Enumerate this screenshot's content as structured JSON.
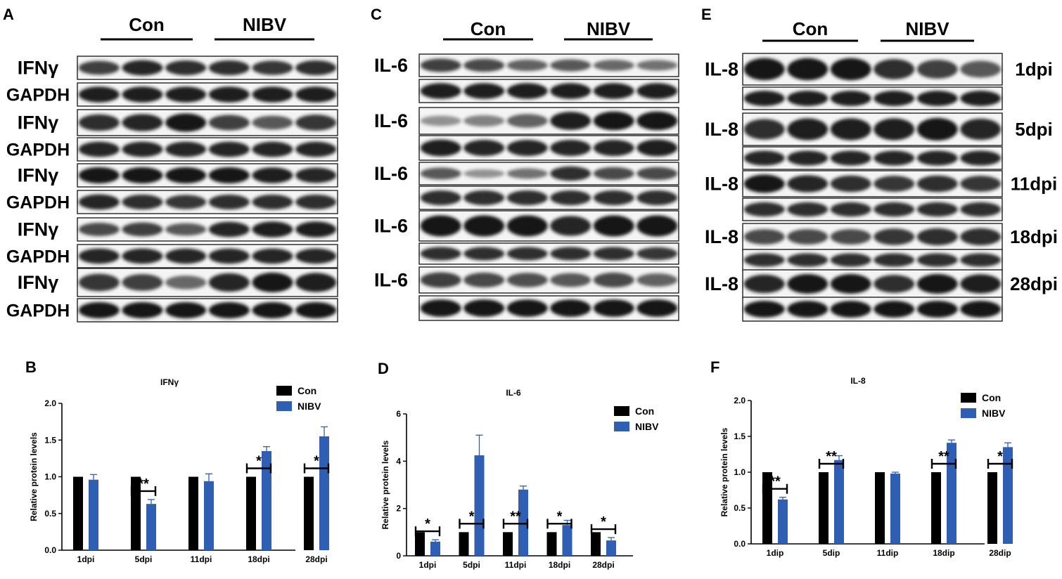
{
  "blot_panels": [
    {
      "letter": "A",
      "group_labels": [
        "Con",
        "NIBV"
      ],
      "rows": [
        "IFNγ",
        "GAPDH",
        "IFNγ",
        "GAPDH",
        "IFNγ",
        "GAPDH",
        "IFNγ",
        "GAPDH",
        "IFNγ",
        "GAPDH"
      ],
      "timepoints": []
    },
    {
      "letter": "C",
      "group_labels": [
        "Con",
        "NIBV"
      ],
      "rows": [
        "IL-6",
        "",
        "IL-6",
        "",
        "IL-6",
        "",
        "IL-6",
        "",
        "IL-6",
        ""
      ],
      "timepoints": []
    },
    {
      "letter": "E",
      "group_labels": [
        "Con",
        "NIBV"
      ],
      "rows": [
        "IL-8",
        "",
        "IL-8",
        "",
        "IL-8",
        "",
        "IL-8",
        "",
        "IL-8",
        ""
      ],
      "timepoints": [
        "1dpi",
        "5dpi",
        "11dpi",
        "18dpi",
        "28dpi"
      ]
    }
  ],
  "colors": {
    "con": "#000000",
    "nibv": "#2e5fb3",
    "band": "#151515"
  },
  "chart_data": [
    {
      "letter": "B",
      "type": "bar",
      "title": "IFNγ",
      "ylabel": "Relative protein levels",
      "categories": [
        "1dpi",
        "5dpi",
        "11dpi",
        "18dpi",
        "28dpi"
      ],
      "series": [
        {
          "name": "Con",
          "values": [
            1.0,
            1.0,
            1.0,
            1.0,
            1.0
          ],
          "errors": [
            0,
            0,
            0,
            0,
            0
          ]
        },
        {
          "name": "NIBV",
          "values": [
            0.96,
            0.63,
            0.94,
            1.35,
            1.55
          ],
          "errors": [
            0.07,
            0.06,
            0.1,
            0.06,
            0.13
          ]
        }
      ],
      "significance": [
        "",
        "**",
        "",
        "*",
        "*"
      ],
      "ylim": [
        0,
        2.0
      ],
      "yticks": [
        0.0,
        0.5,
        1.0,
        1.5,
        2.0
      ],
      "ytick_labels": [
        "0.0",
        "0.5",
        "1.0",
        "1.5",
        "2.0"
      ],
      "legend": "top-right"
    },
    {
      "letter": "D",
      "type": "bar",
      "title": "IL-6",
      "ylabel": "Relative protein levels",
      "categories": [
        "1dpi",
        "5dpi",
        "11dpi",
        "18dpi",
        "28dpi"
      ],
      "series": [
        {
          "name": "Con",
          "values": [
            1.0,
            1.0,
            1.0,
            1.0,
            1.0
          ],
          "errors": [
            0,
            0,
            0,
            0,
            0
          ]
        },
        {
          "name": "NIBV",
          "values": [
            0.6,
            4.25,
            2.8,
            1.3,
            0.65
          ],
          "errors": [
            0.08,
            0.85,
            0.15,
            0.2,
            0.12
          ]
        }
      ],
      "significance": [
        "*",
        "*",
        "**",
        "*",
        "*"
      ],
      "ylim": [
        0,
        6
      ],
      "yticks": [
        0,
        2,
        4,
        6
      ],
      "ytick_labels": [
        "0",
        "2",
        "4",
        "6"
      ],
      "legend": "top-right"
    },
    {
      "letter": "F",
      "type": "bar",
      "title": "IL-8",
      "ylabel": "Relative protein levels",
      "categories": [
        "1dip",
        "5dip",
        "11dip",
        "18dip",
        "28dip"
      ],
      "series": [
        {
          "name": "Con",
          "values": [
            1.0,
            1.0,
            1.0,
            1.0,
            1.0
          ],
          "errors": [
            0,
            0,
            0,
            0,
            0
          ]
        },
        {
          "name": "NIBV",
          "values": [
            0.62,
            1.17,
            0.98,
            1.41,
            1.35
          ],
          "errors": [
            0.03,
            0.06,
            0.02,
            0.04,
            0.06
          ]
        }
      ],
      "significance": [
        "**",
        "**",
        "",
        "**",
        "*"
      ],
      "ylim": [
        0,
        2.0
      ],
      "yticks": [
        0.0,
        0.5,
        1.0,
        1.5,
        2.0
      ],
      "ytick_labels": [
        "0.0",
        "0.5",
        "1.0",
        "1.5",
        "2.0"
      ],
      "legend": "top-right"
    }
  ]
}
